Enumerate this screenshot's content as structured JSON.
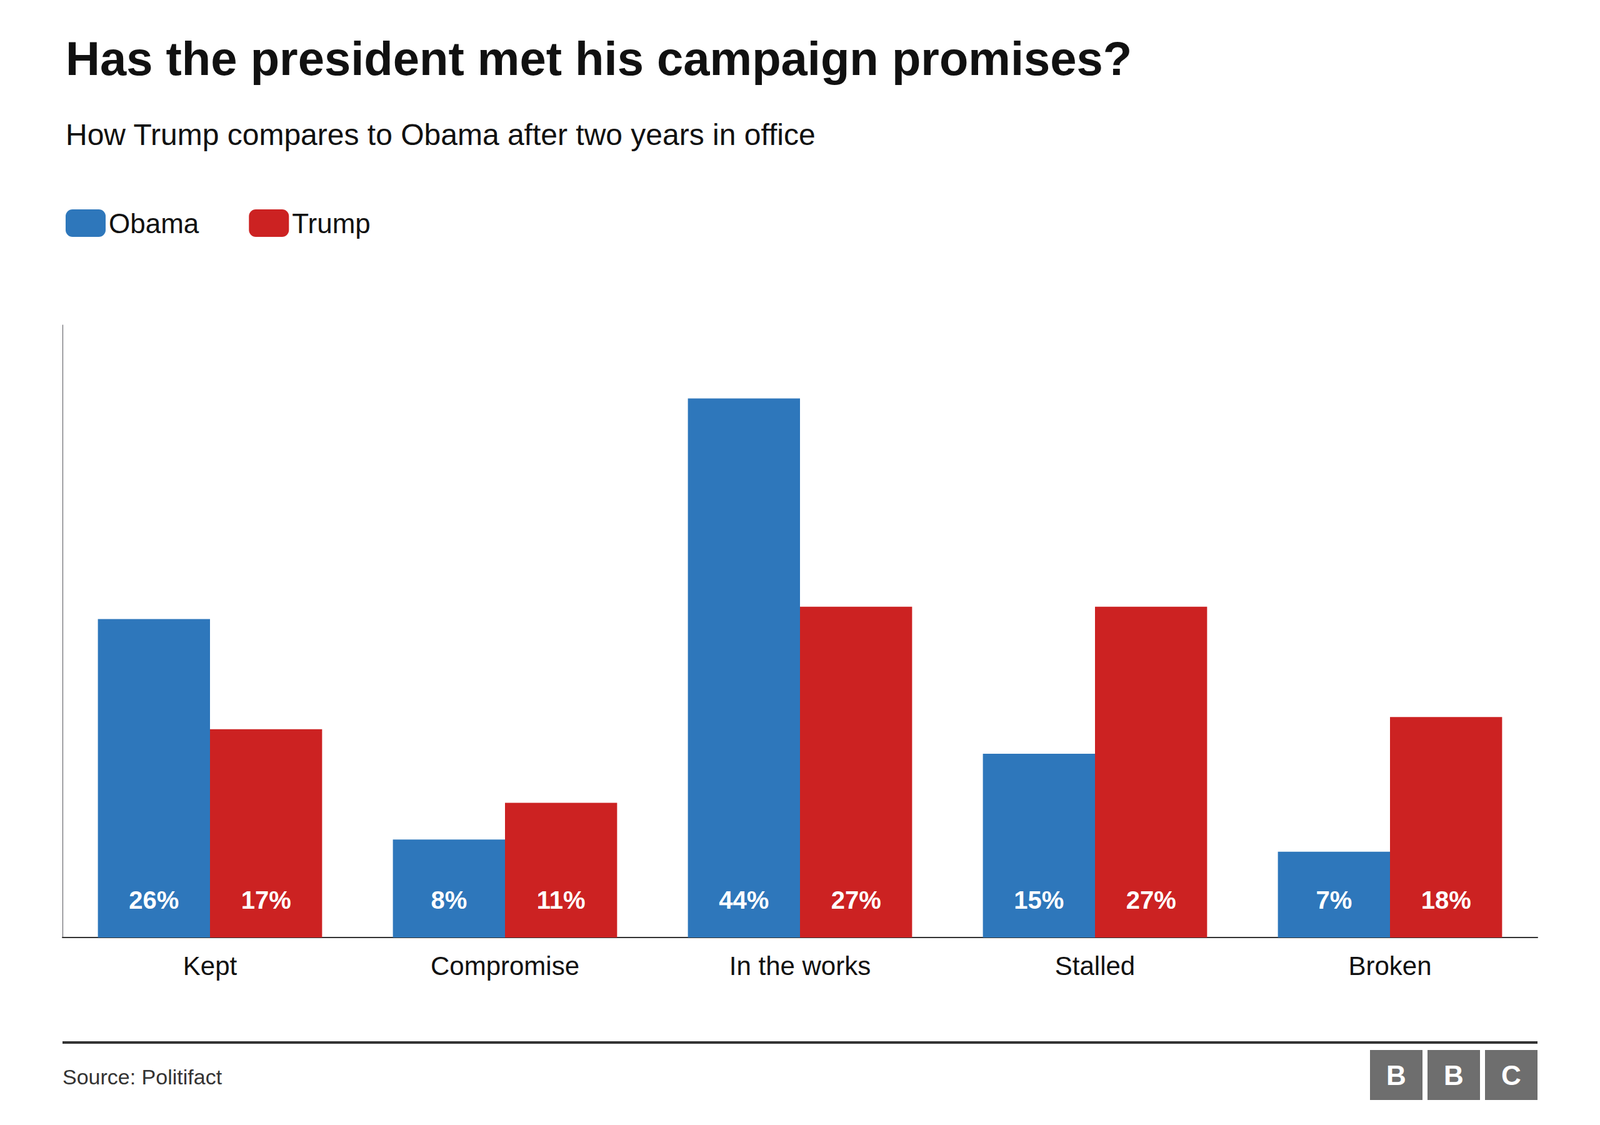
{
  "chart_data": {
    "type": "bar",
    "title": "Has the president met his campaign promises?",
    "subtitle": "How Trump compares to Obama after two years in office",
    "categories": [
      "Kept",
      "Compromise",
      "In the works",
      "Stalled",
      "Broken"
    ],
    "series": [
      {
        "name": "Obama",
        "color": "#2e77bb",
        "values": [
          26,
          8,
          44,
          15,
          7
        ],
        "value_labels": [
          "26%",
          "8%",
          "44%",
          "15%",
          "7%"
        ]
      },
      {
        "name": "Trump",
        "color": "#cc2222",
        "values": [
          17,
          11,
          27,
          27,
          18
        ],
        "value_labels": [
          "17%",
          "11%",
          "27%",
          "27%",
          "18%"
        ]
      }
    ],
    "ylim": [
      0,
      50
    ],
    "grid": false,
    "legend": "upper left",
    "data_labels": true,
    "tick_labels": "x",
    "source": "Source: Politifact",
    "logo": "BBC"
  }
}
